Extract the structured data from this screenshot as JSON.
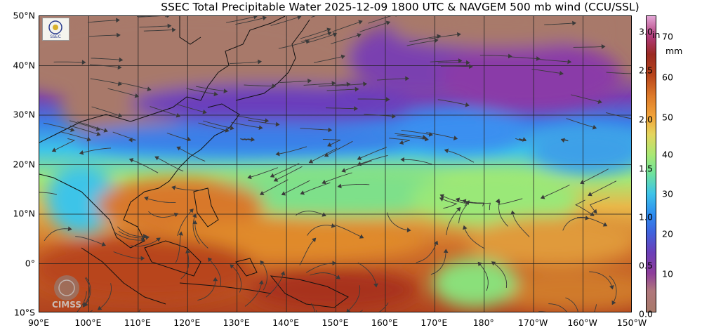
{
  "title": "SSEC Total Precipitable Water  2025-12-09 1800 UTC & NAVGEM 500 mb wind (CCU/SSL)",
  "lat_labels": [
    "50°N",
    "40°N",
    "30°N",
    "20°N",
    "10°N",
    "0°",
    "10°S"
  ],
  "lon_labels": [
    "90°E",
    "100°E",
    "110°E",
    "120°E",
    "130°E",
    "140°E",
    "150°E",
    "160°E",
    "170°E",
    "180°",
    "170°W",
    "160°W",
    "150°W"
  ],
  "colorbar": {
    "unit_in": "in",
    "unit_mm": "mm",
    "in_ticks": [
      "3.0",
      "2.5",
      "2.0",
      "1.5",
      "1.0",
      "0.5",
      "0.0"
    ],
    "mm_ticks": [
      "70",
      "60",
      "50",
      "40",
      "30",
      "20",
      "10"
    ]
  },
  "logos": {
    "cimss_text": "CIMSS",
    "ssec_text": "SSEC"
  },
  "colors": {
    "dry": "#a8796a",
    "moist_low": "#7a3fb0",
    "moist_mid": "#3a8ff0",
    "moist_high": "#e08a2a",
    "very_moist": "#a8321e",
    "grid": "#222222",
    "streamline": "#3a3a3a"
  }
}
